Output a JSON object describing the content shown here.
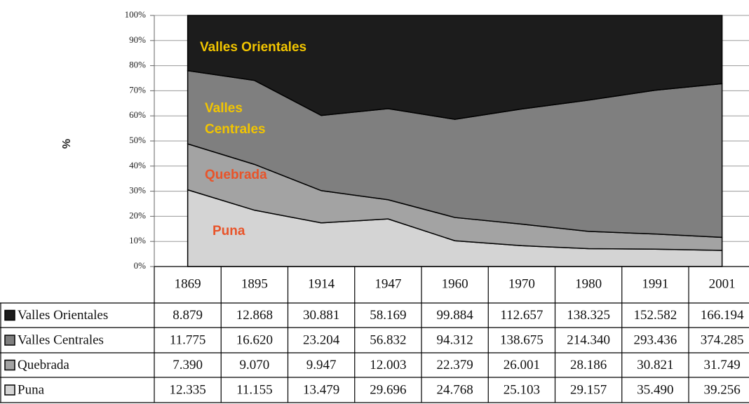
{
  "chart_data": {
    "type": "stacked_area_100",
    "y_label": "%",
    "categories": [
      "1869",
      "1895",
      "1914",
      "1947",
      "1960",
      "1970",
      "1980",
      "1991",
      "2001"
    ],
    "series": [
      {
        "name": "Valles Orientales",
        "color": "#1c1c1c",
        "values": [
          8.879,
          12.868,
          30.881,
          58.169,
          99.884,
          112.657,
          138.325,
          152.582,
          166.194
        ],
        "value_labels": [
          "8.879",
          "12.868",
          "30.881",
          "58.169",
          "99.884",
          "112.657",
          "138.325",
          "152.582",
          "166.194"
        ]
      },
      {
        "name": "Valles Centrales",
        "color": "#7f7f7f",
        "values": [
          11.775,
          16.62,
          23.204,
          56.832,
          94.312,
          138.675,
          214.34,
          293.436,
          374.285
        ],
        "value_labels": [
          "11.775",
          "16.620",
          "23.204",
          "56.832",
          "94.312",
          "138.675",
          "214.340",
          "293.436",
          "374.285"
        ]
      },
      {
        "name": "Quebrada",
        "color": "#a3a3a3",
        "values": [
          7.39,
          9.07,
          9.947,
          12.003,
          22.379,
          26.001,
          28.186,
          30.821,
          31.749
        ],
        "value_labels": [
          "7.390",
          "9.070",
          "9.947",
          "12.003",
          "22.379",
          "26.001",
          "28.186",
          "30.821",
          "31.749"
        ]
      },
      {
        "name": "Puna",
        "color": "#d4d4d4",
        "values": [
          12.335,
          11.155,
          13.479,
          29.696,
          24.768,
          25.103,
          29.157,
          35.49,
          39.256
        ],
        "value_labels": [
          "12.335",
          "11.155",
          "13.479",
          "29.696",
          "24.768",
          "25.103",
          "29.157",
          "35.490",
          "39.256"
        ]
      }
    ],
    "ylim": [
      0,
      100
    ],
    "yticks": [
      {
        "value": 0,
        "label": "0%"
      },
      {
        "value": 10,
        "label": "10%"
      },
      {
        "value": 20,
        "label": "20%"
      },
      {
        "value": 30,
        "label": "30%"
      },
      {
        "value": 40,
        "label": "40%"
      },
      {
        "value": 50,
        "label": "50%"
      },
      {
        "value": 60,
        "label": "60%"
      },
      {
        "value": 70,
        "label": "70%"
      },
      {
        "value": 80,
        "label": "80%"
      },
      {
        "value": 90,
        "label": "90%"
      },
      {
        "value": 100,
        "label": "100%"
      }
    ],
    "grid": true,
    "annotations": [
      {
        "lines": [
          "Valles Orientales"
        ],
        "color": "#f2c500"
      },
      {
        "lines": [
          "Valles",
          "Centrales"
        ],
        "color": "#f2c500"
      },
      {
        "lines": [
          "Quebrada"
        ],
        "color": "#e8542a"
      },
      {
        "lines": [
          "Puna"
        ],
        "color": "#e8542a"
      }
    ]
  }
}
